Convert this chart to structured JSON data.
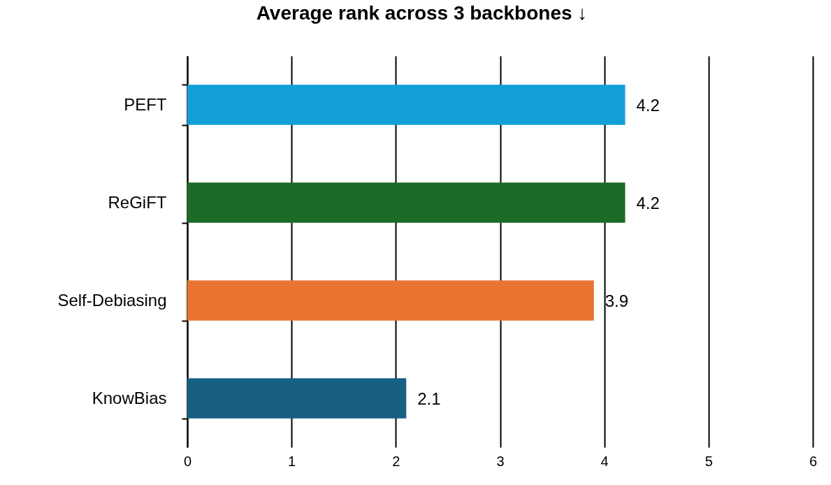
{
  "chart_data": {
    "type": "bar",
    "orientation": "horizontal",
    "title": "Average rank across 3 backbones ↓",
    "categories": [
      "PEFT",
      "ReGiFT",
      "Self-Debiasing",
      "KnowBias"
    ],
    "values": [
      4.2,
      4.2,
      3.9,
      2.1
    ],
    "colors": [
      "#129fd8",
      "#1b6b26",
      "#e97432",
      "#176083"
    ],
    "xlim": [
      0,
      6
    ],
    "xticks": [
      0,
      1,
      2,
      3,
      4,
      5,
      6
    ],
    "grid": "x",
    "data_labels": true
  }
}
